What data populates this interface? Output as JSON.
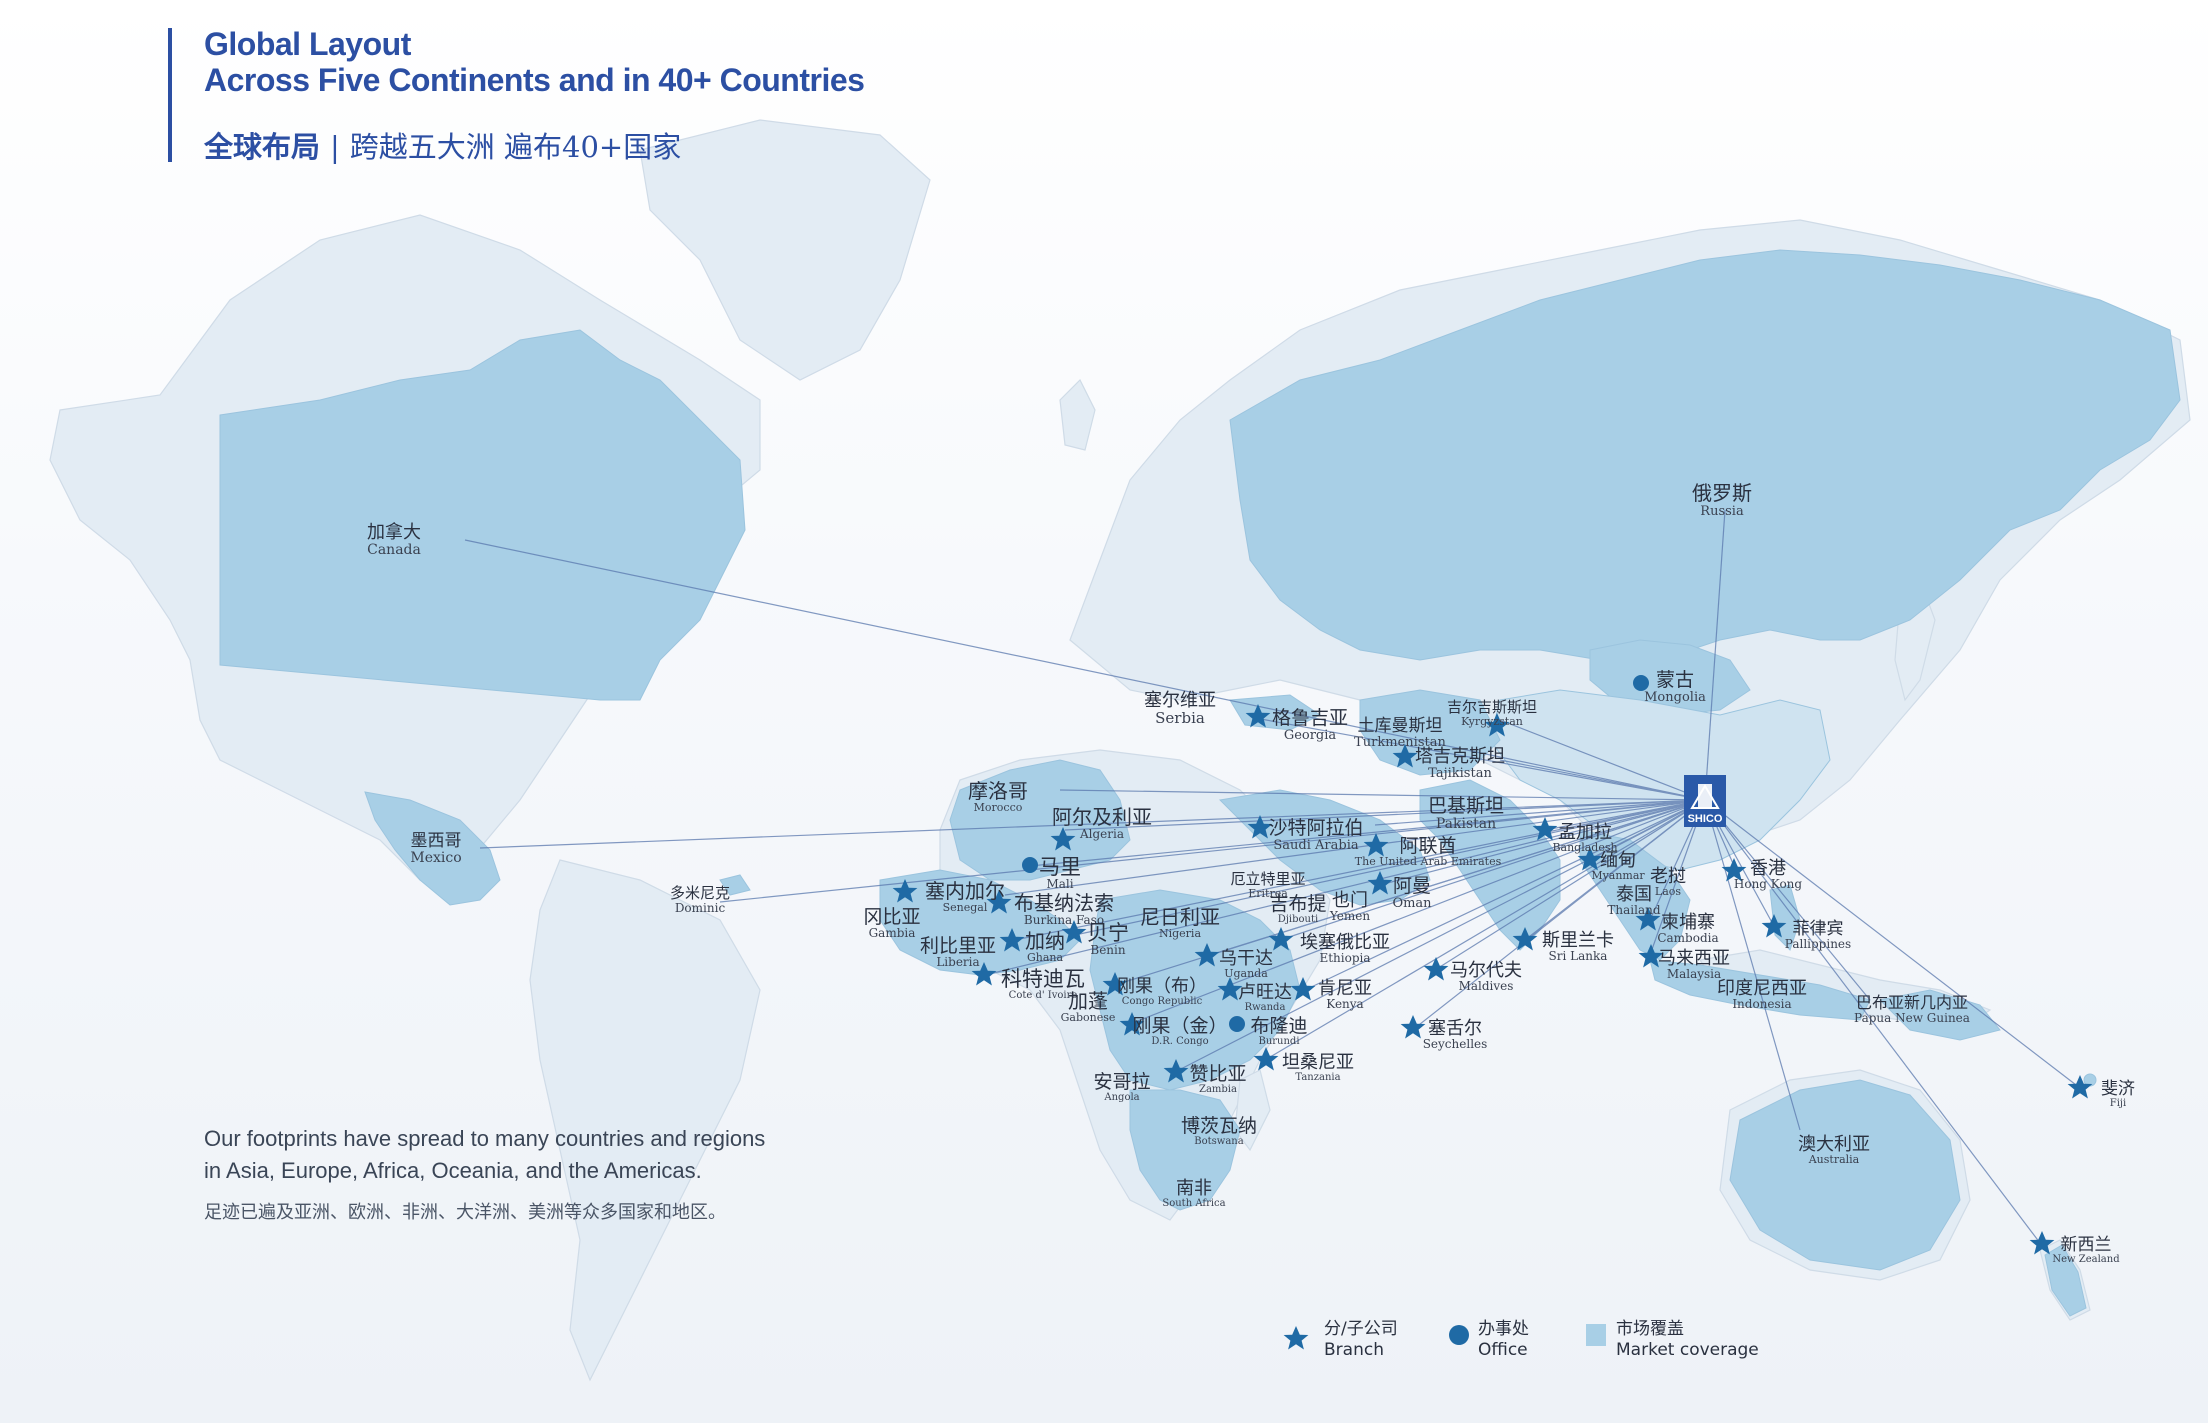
{
  "header": {
    "title_line1": "Global Layout",
    "title_line2": "Across Five Continents and in 40+ Countries",
    "title_zh_main": "全球布局",
    "title_zh_sep": "|",
    "title_zh_rest": "跨越五大洲 遍布40+国家"
  },
  "description": {
    "line1": "Our footprints have spread to many countries and regions",
    "line2": "in Asia, Europe, Africa, Oceania, and the Americas.",
    "line3": "足迹已遍及亚洲、欧洲、非洲、大洋洲、美洲等众多国家和地区。"
  },
  "logo": {
    "text": "SHICO"
  },
  "colors": {
    "accent": "#2c4fa3",
    "marker": "#1f6aa5",
    "coverage": "#a8cfe6",
    "land": "#e2ecf4",
    "line": "#4d6ea6"
  },
  "legend": {
    "branch_zh": "分/子公司",
    "branch_en": "Branch",
    "office_zh": "办事处",
    "office_en": "Office",
    "coverage_zh": "市场覆盖",
    "coverage_en": "Market coverage"
  },
  "locations": [
    {
      "id": "canada",
      "zh": "加拿大",
      "en": "Canada",
      "type": "none"
    },
    {
      "id": "mexico",
      "zh": "墨西哥",
      "en": "Mexico",
      "type": "none"
    },
    {
      "id": "dominic",
      "zh": "多米尼克",
      "en": "Dominic",
      "type": "none"
    },
    {
      "id": "russia",
      "zh": "俄罗斯",
      "en": "Russia",
      "type": "none"
    },
    {
      "id": "mongolia",
      "zh": "蒙古",
      "en": "Mongolia",
      "type": "office"
    },
    {
      "id": "serbia",
      "zh": "塞尔维亚",
      "en": "Serbia",
      "type": "none"
    },
    {
      "id": "georgia",
      "zh": "格鲁吉亚",
      "en": "Georgia",
      "type": "branch"
    },
    {
      "id": "turkmenistan",
      "zh": "土库曼斯坦",
      "en": "Turkmenistan",
      "type": "none"
    },
    {
      "id": "kyrgyzstan",
      "zh": "吉尔吉斯斯坦",
      "en": "Kyrgyzstan",
      "type": "branch"
    },
    {
      "id": "tajikistan",
      "zh": "塔吉克斯坦",
      "en": "Tajikistan",
      "type": "branch"
    },
    {
      "id": "morocco",
      "zh": "摩洛哥",
      "en": "Morocco",
      "type": "none"
    },
    {
      "id": "algeria",
      "zh": "阿尔及利亚",
      "en": "Algeria",
      "type": "branch"
    },
    {
      "id": "saudi",
      "zh": "沙特阿拉伯",
      "en": "Saudi Arabia",
      "type": "branch"
    },
    {
      "id": "pakistan",
      "zh": "巴基斯坦",
      "en": "Pakistan",
      "type": "none"
    },
    {
      "id": "bangladesh",
      "zh": "孟加拉",
      "en": "Bangladesh",
      "type": "branch"
    },
    {
      "id": "uae",
      "zh": "阿联酋",
      "en": "The United Arab Emirates",
      "type": "branch"
    },
    {
      "id": "myanmar",
      "zh": "缅甸",
      "en": "Myanmar",
      "type": "branch"
    },
    {
      "id": "laos",
      "zh": "老挝",
      "en": "Laos",
      "type": "none"
    },
    {
      "id": "hongkong",
      "zh": "香港",
      "en": "Hong Kong",
      "type": "branch"
    },
    {
      "id": "mali",
      "zh": "马里",
      "en": "Mali",
      "type": "office"
    },
    {
      "id": "senegal",
      "zh": "塞内加尔",
      "en": "Senegal",
      "type": "branch"
    },
    {
      "id": "burkina",
      "zh": "布基纳法索",
      "en": "Burkina Faso",
      "type": "branch"
    },
    {
      "id": "eritrea",
      "zh": "厄立特里亚",
      "en": "Eritrea",
      "type": "none"
    },
    {
      "id": "oman",
      "zh": "阿曼",
      "en": "Oman",
      "type": "branch"
    },
    {
      "id": "thailand",
      "zh": "泰国",
      "en": "Thailand",
      "type": "none"
    },
    {
      "id": "gambia",
      "zh": "冈比亚",
      "en": "Gambia",
      "type": "none"
    },
    {
      "id": "djibouti",
      "zh": "吉布提",
      "en": "Djibouti",
      "type": "none"
    },
    {
      "id": "yemen",
      "zh": "也门",
      "en": "Yemen",
      "type": "none"
    },
    {
      "id": "niger",
      "zh": "尼日利亚",
      "en": "Nigeria",
      "type": "none"
    },
    {
      "id": "liberia",
      "zh": "利比里亚",
      "en": "Liberia",
      "type": "none"
    },
    {
      "id": "ghana",
      "zh": "加纳",
      "en": "Ghana",
      "type": "branch"
    },
    {
      "id": "benin",
      "zh": "贝宁",
      "en": "Benin",
      "type": "branch"
    },
    {
      "id": "ethiopia",
      "zh": "埃塞俄比亚",
      "en": "Ethiopia",
      "type": "branch"
    },
    {
      "id": "srilanka",
      "zh": "斯里兰卡",
      "en": "Sri Lanka",
      "type": "branch"
    },
    {
      "id": "cambodia",
      "zh": "柬埔寨",
      "en": "Cambodia",
      "type": "branch"
    },
    {
      "id": "philippines",
      "zh": "菲律宾",
      "en": "Pallippines",
      "type": "branch"
    },
    {
      "id": "uganda",
      "zh": "乌干达",
      "en": "Uganda",
      "type": "branch"
    },
    {
      "id": "maldives",
      "zh": "马尔代夫",
      "en": "Maldives",
      "type": "branch"
    },
    {
      "id": "malaysia",
      "zh": "马来西亚",
      "en": "Malaysia",
      "type": "branch"
    },
    {
      "id": "cotedivoire",
      "zh": "科特迪瓦",
      "en": "Cote d' Ivoire",
      "type": "branch"
    },
    {
      "id": "congo",
      "zh": "刚果（布）",
      "en": "Congo Republic",
      "type": "branch"
    },
    {
      "id": "rwanda",
      "zh": "卢旺达",
      "en": "Rwanda",
      "type": "branch"
    },
    {
      "id": "kenya",
      "zh": "肯尼亚",
      "en": "Kenya",
      "type": "branch"
    },
    {
      "id": "indonesia",
      "zh": "印度尼西亚",
      "en": "Indonesia",
      "type": "none"
    },
    {
      "id": "png",
      "zh": "巴布亚新几内亚",
      "en": "Papua New Guinea",
      "type": "none"
    },
    {
      "id": "gabon",
      "zh": "加蓬",
      "en": "Gabonese",
      "type": "none"
    },
    {
      "id": "drcongo",
      "zh": "刚果（金）",
      "en": "D.R. Congo",
      "type": "branch"
    },
    {
      "id": "burundi",
      "zh": "布隆迪",
      "en": "Burundi",
      "type": "office"
    },
    {
      "id": "seychelles",
      "zh": "塞舌尔",
      "en": "Seychelles",
      "type": "branch"
    },
    {
      "id": "tanzania",
      "zh": "坦桑尼亚",
      "en": "Tanzania",
      "type": "branch"
    },
    {
      "id": "angola",
      "zh": "安哥拉",
      "en": "Angola",
      "type": "none"
    },
    {
      "id": "zambia",
      "zh": "赞比亚",
      "en": "Zambia",
      "type": "branch"
    },
    {
      "id": "fiji",
      "zh": "斐济",
      "en": "Fiji",
      "type": "branch"
    },
    {
      "id": "australia",
      "zh": "澳大利亚",
      "en": "Australia",
      "type": "none"
    },
    {
      "id": "botswana",
      "zh": "博茨瓦纳",
      "en": "Botswana",
      "type": "none"
    },
    {
      "id": "southafrica",
      "zh": "南非",
      "en": "South Africa",
      "type": "none"
    },
    {
      "id": "newzealand",
      "zh": "新西兰",
      "en": "New Zealand",
      "type": "branch"
    }
  ]
}
